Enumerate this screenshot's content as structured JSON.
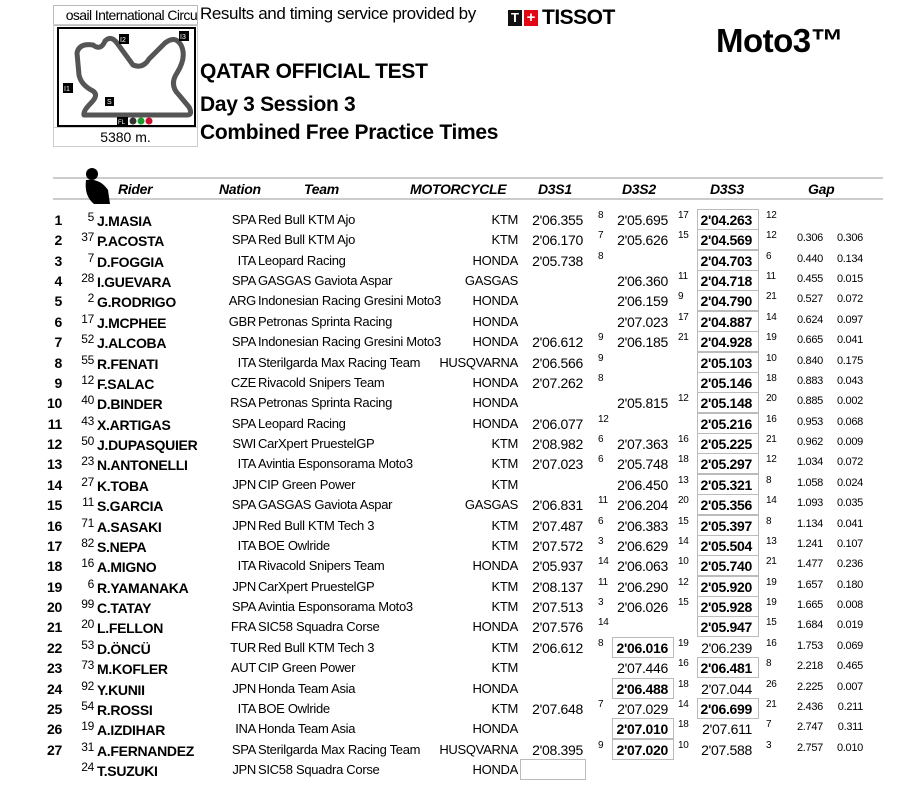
{
  "header": {
    "circuit": "osail International Circu",
    "circuit_length": "5380 m.",
    "provider_text": "Results and timing service provided by",
    "timing_brand": "TISSOT",
    "class": "Moto3™",
    "event": "QATAR OFFICIAL TEST",
    "session": "Day 3 Session 3",
    "report": "Combined Free Practice Times",
    "map_labels": [
      "I1",
      "I2",
      "I3",
      "S",
      "FL"
    ]
  },
  "columns": {
    "rider": "Rider",
    "nation": "Nation",
    "team": "Team",
    "motorcycle": "MOTORCYCLE",
    "s1": "D3S1",
    "s2": "D3S2",
    "s3": "D3S3",
    "gap": "Gap"
  },
  "rows": [
    {
      "pos": "1",
      "num": "5",
      "name": "J.MASIA",
      "nat": "SPA",
      "team": "Red Bull KTM Ajo",
      "moto": "KTM",
      "s1": "2'06.355",
      "s1l": "8",
      "s2": "2'05.695",
      "s2l": "17",
      "s3": "2'04.263",
      "s3l": "12",
      "g1": "",
      "g2": "",
      "best": 3
    },
    {
      "pos": "2",
      "num": "37",
      "name": "P.ACOSTA",
      "nat": "SPA",
      "team": "Red Bull KTM Ajo",
      "moto": "KTM",
      "s1": "2'06.170",
      "s1l": "7",
      "s2": "2'05.626",
      "s2l": "15",
      "s3": "2'04.569",
      "s3l": "12",
      "g1": "0.306",
      "g2": "0.306",
      "best": 3
    },
    {
      "pos": "3",
      "num": "7",
      "name": "D.FOGGIA",
      "nat": "ITA",
      "team": "Leopard Racing",
      "moto": "HONDA",
      "s1": "2'05.738",
      "s1l": "8",
      "s2": "",
      "s2l": "",
      "s3": "2'04.703",
      "s3l": "6",
      "g1": "0.440",
      "g2": "0.134",
      "best": 3
    },
    {
      "pos": "4",
      "num": "28",
      "name": "I.GUEVARA",
      "nat": "SPA",
      "team": "GASGAS Gaviota Aspar",
      "moto": "GASGAS",
      "s1": "",
      "s1l": "",
      "s2": "2'06.360",
      "s2l": "11",
      "s3": "2'04.718",
      "s3l": "11",
      "g1": "0.455",
      "g2": "0.015",
      "best": 3
    },
    {
      "pos": "5",
      "num": "2",
      "name": "G.RODRIGO",
      "nat": "ARG",
      "team": "Indonesian Racing Gresini Moto3",
      "moto": "HONDA",
      "s1": "",
      "s1l": "",
      "s2": "2'06.159",
      "s2l": "9",
      "s3": "2'04.790",
      "s3l": "21",
      "g1": "0.527",
      "g2": "0.072",
      "best": 3
    },
    {
      "pos": "6",
      "num": "17",
      "name": "J.MCPHEE",
      "nat": "GBR",
      "team": "Petronas Sprinta Racing",
      "moto": "HONDA",
      "s1": "",
      "s1l": "",
      "s2": "2'07.023",
      "s2l": "17",
      "s3": "2'04.887",
      "s3l": "14",
      "g1": "0.624",
      "g2": "0.097",
      "best": 3
    },
    {
      "pos": "7",
      "num": "52",
      "name": "J.ALCOBA",
      "nat": "SPA",
      "team": "Indonesian Racing Gresini Moto3",
      "moto": "HONDA",
      "s1": "2'06.612",
      "s1l": "9",
      "s2": "2'06.185",
      "s2l": "21",
      "s3": "2'04.928",
      "s3l": "19",
      "g1": "0.665",
      "g2": "0.041",
      "best": 3
    },
    {
      "pos": "8",
      "num": "55",
      "name": "R.FENATI",
      "nat": "ITA",
      "team": "Sterilgarda Max Racing Team",
      "moto": "HUSQVARNA",
      "s1": "2'06.566",
      "s1l": "9",
      "s2": "",
      "s2l": "",
      "s3": "2'05.103",
      "s3l": "10",
      "g1": "0.840",
      "g2": "0.175",
      "best": 3
    },
    {
      "pos": "9",
      "num": "12",
      "name": "F.SALAC",
      "nat": "CZE",
      "team": "Rivacold Snipers Team",
      "moto": "HONDA",
      "s1": "2'07.262",
      "s1l": "8",
      "s2": "",
      "s2l": "",
      "s3": "2'05.146",
      "s3l": "18",
      "g1": "0.883",
      "g2": "0.043",
      "best": 3
    },
    {
      "pos": "10",
      "num": "40",
      "name": "D.BINDER",
      "nat": "RSA",
      "team": "Petronas Sprinta Racing",
      "moto": "HONDA",
      "s1": "",
      "s1l": "",
      "s2": "2'05.815",
      "s2l": "12",
      "s3": "2'05.148",
      "s3l": "20",
      "g1": "0.885",
      "g2": "0.002",
      "best": 3
    },
    {
      "pos": "11",
      "num": "43",
      "name": "X.ARTIGAS",
      "nat": "SPA",
      "team": "Leopard Racing",
      "moto": "HONDA",
      "s1": "2'06.077",
      "s1l": "12",
      "s2": "",
      "s2l": "",
      "s3": "2'05.216",
      "s3l": "16",
      "g1": "0.953",
      "g2": "0.068",
      "best": 3
    },
    {
      "pos": "12",
      "num": "50",
      "name": "J.DUPASQUIER",
      "nat": "SWI",
      "team": "CarXpert PruestelGP",
      "moto": "KTM",
      "s1": "2'08.982",
      "s1l": "6",
      "s2": "2'07.363",
      "s2l": "16",
      "s3": "2'05.225",
      "s3l": "21",
      "g1": "0.962",
      "g2": "0.009",
      "best": 3
    },
    {
      "pos": "13",
      "num": "23",
      "name": "N.ANTONELLI",
      "nat": "ITA",
      "team": "Avintia Esponsorama Moto3",
      "moto": "KTM",
      "s1": "2'07.023",
      "s1l": "6",
      "s2": "2'05.748",
      "s2l": "18",
      "s3": "2'05.297",
      "s3l": "12",
      "g1": "1.034",
      "g2": "0.072",
      "best": 3
    },
    {
      "pos": "14",
      "num": "27",
      "name": "K.TOBA",
      "nat": "JPN",
      "team": "CIP Green Power",
      "moto": "KTM",
      "s1": "",
      "s1l": "",
      "s2": "2'06.450",
      "s2l": "13",
      "s3": "2'05.321",
      "s3l": "8",
      "g1": "1.058",
      "g2": "0.024",
      "best": 3
    },
    {
      "pos": "15",
      "num": "11",
      "name": "S.GARCIA",
      "nat": "SPA",
      "team": "GASGAS Gaviota Aspar",
      "moto": "GASGAS",
      "s1": "2'06.831",
      "s1l": "11",
      "s2": "2'06.204",
      "s2l": "20",
      "s3": "2'05.356",
      "s3l": "14",
      "g1": "1.093",
      "g2": "0.035",
      "best": 3
    },
    {
      "pos": "16",
      "num": "71",
      "name": "A.SASAKI",
      "nat": "JPN",
      "team": "Red Bull KTM Tech 3",
      "moto": "KTM",
      "s1": "2'07.487",
      "s1l": "6",
      "s2": "2'06.383",
      "s2l": "15",
      "s3": "2'05.397",
      "s3l": "8",
      "g1": "1.134",
      "g2": "0.041",
      "best": 3
    },
    {
      "pos": "17",
      "num": "82",
      "name": "S.NEPA",
      "nat": "ITA",
      "team": "BOE Owlride",
      "moto": "KTM",
      "s1": "2'07.572",
      "s1l": "3",
      "s2": "2'06.629",
      "s2l": "14",
      "s3": "2'05.504",
      "s3l": "13",
      "g1": "1.241",
      "g2": "0.107",
      "best": 3
    },
    {
      "pos": "18",
      "num": "16",
      "name": "A.MIGNO",
      "nat": "ITA",
      "team": "Rivacold Snipers Team",
      "moto": "HONDA",
      "s1": "2'05.937",
      "s1l": "14",
      "s2": "2'06.063",
      "s2l": "10",
      "s3": "2'05.740",
      "s3l": "21",
      "g1": "1.477",
      "g2": "0.236",
      "best": 3
    },
    {
      "pos": "19",
      "num": "6",
      "name": "R.YAMANAKA",
      "nat": "JPN",
      "team": "CarXpert PruestelGP",
      "moto": "KTM",
      "s1": "2'08.137",
      "s1l": "11",
      "s2": "2'06.290",
      "s2l": "12",
      "s3": "2'05.920",
      "s3l": "19",
      "g1": "1.657",
      "g2": "0.180",
      "best": 3
    },
    {
      "pos": "20",
      "num": "99",
      "name": "C.TATAY",
      "nat": "SPA",
      "team": "Avintia Esponsorama Moto3",
      "moto": "KTM",
      "s1": "2'07.513",
      "s1l": "3",
      "s2": "2'06.026",
      "s2l": "15",
      "s3": "2'05.928",
      "s3l": "19",
      "g1": "1.665",
      "g2": "0.008",
      "best": 3
    },
    {
      "pos": "21",
      "num": "20",
      "name": "L.FELLON",
      "nat": "FRA",
      "team": "SIC58 Squadra Corse",
      "moto": "HONDA",
      "s1": "2'07.576",
      "s1l": "14",
      "s2": "",
      "s2l": "",
      "s3": "2'05.947",
      "s3l": "15",
      "g1": "1.684",
      "g2": "0.019",
      "best": 3
    },
    {
      "pos": "22",
      "num": "53",
      "name": "D.ÖNCÜ",
      "nat": "TUR",
      "team": "Red Bull KTM Tech 3",
      "moto": "KTM",
      "s1": "2'06.612",
      "s1l": "8",
      "s2": "2'06.016",
      "s2l": "19",
      "s3": "2'06.239",
      "s3l": "16",
      "g1": "1.753",
      "g2": "0.069",
      "best": 2
    },
    {
      "pos": "23",
      "num": "73",
      "name": "M.KOFLER",
      "nat": "AUT",
      "team": "CIP Green Power",
      "moto": "KTM",
      "s1": "",
      "s1l": "",
      "s2": "2'07.446",
      "s2l": "16",
      "s3": "2'06.481",
      "s3l": "8",
      "g1": "2.218",
      "g2": "0.465",
      "best": 3
    },
    {
      "pos": "24",
      "num": "92",
      "name": "Y.KUNII",
      "nat": "JPN",
      "team": "Honda Team Asia",
      "moto": "HONDA",
      "s1": "",
      "s1l": "",
      "s2": "2'06.488",
      "s2l": "18",
      "s3": "2'07.044",
      "s3l": "26",
      "g1": "2.225",
      "g2": "0.007",
      "best": 2
    },
    {
      "pos": "25",
      "num": "54",
      "name": "R.ROSSI",
      "nat": "ITA",
      "team": "BOE Owlride",
      "moto": "KTM",
      "s1": "2'07.648",
      "s1l": "7",
      "s2": "2'07.029",
      "s2l": "14",
      "s3": "2'06.699",
      "s3l": "21",
      "g1": "2.436",
      "g2": "0.211",
      "best": 3
    },
    {
      "pos": "26",
      "num": "19",
      "name": "A.IZDIHAR",
      "nat": "INA",
      "team": "Honda Team Asia",
      "moto": "HONDA",
      "s1": "",
      "s1l": "",
      "s2": "2'07.010",
      "s2l": "18",
      "s3": "2'07.611",
      "s3l": "7",
      "g1": "2.747",
      "g2": "0.311",
      "best": 2
    },
    {
      "pos": "27",
      "num": "31",
      "name": "A.FERNANDEZ",
      "nat": "SPA",
      "team": "Sterilgarda Max Racing Team",
      "moto": "HUSQVARNA",
      "s1": "2'08.395",
      "s1l": "9",
      "s2": "2'07.020",
      "s2l": "10",
      "s3": "2'07.588",
      "s3l": "3",
      "g1": "2.757",
      "g2": "0.010",
      "best": 2
    },
    {
      "pos": "",
      "num": "24",
      "name": "T.SUZUKI",
      "nat": "JPN",
      "team": "SIC58 Squadra Corse",
      "moto": "HONDA",
      "s1": "",
      "s1l": "",
      "s2": "",
      "s2l": "",
      "s3": "",
      "s3l": "",
      "g1": "",
      "g2": "",
      "best": 1
    }
  ]
}
